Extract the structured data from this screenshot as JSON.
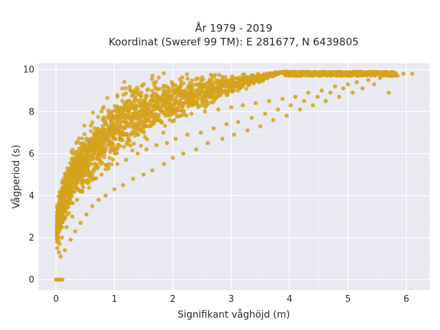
{
  "chart_data": {
    "type": "scatter",
    "title_line1": "År 1979 - 2019",
    "title_line2": "Koordinat (Sweref 99 TM): E 281677, N 6439805",
    "xlabel": "Signifikant våghöjd (m)",
    "ylabel": "Vågperiod (s)",
    "xlim": [
      -0.3,
      6.4
    ],
    "ylim": [
      -0.5,
      10.3
    ],
    "x_ticks": [
      0,
      1,
      2,
      3,
      4,
      5,
      6
    ],
    "y_ticks": [
      0,
      2,
      4,
      6,
      8,
      10
    ],
    "x_tick_labels": [
      "0",
      "1",
      "2",
      "3",
      "4",
      "5",
      "6"
    ],
    "y_tick_labels": [
      "0",
      "2",
      "4",
      "6",
      "8",
      "10"
    ],
    "grid": true,
    "background_color": "#e9e9f2",
    "marker_color": "#d4a21c",
    "points": [
      [
        0.0,
        0.0
      ],
      [
        0.03,
        0.0
      ],
      [
        0.06,
        0.0
      ],
      [
        0.09,
        0.0
      ],
      [
        0.11,
        0.0
      ],
      [
        0.02,
        1.5
      ],
      [
        0.03,
        2.2
      ],
      [
        0.05,
        1.3
      ],
      [
        0.06,
        1.7
      ],
      [
        0.08,
        1.1
      ],
      [
        0.1,
        2.0
      ],
      [
        0.12,
        2.8
      ],
      [
        0.14,
        3.3
      ],
      [
        0.15,
        1.4
      ],
      [
        0.18,
        2.5
      ],
      [
        0.2,
        3.6
      ],
      [
        0.22,
        4.1
      ],
      [
        0.25,
        1.9
      ],
      [
        0.28,
        3.0
      ],
      [
        0.3,
        4.5
      ],
      [
        0.33,
        2.3
      ],
      [
        0.36,
        3.8
      ],
      [
        0.4,
        4.9
      ],
      [
        0.42,
        2.7
      ],
      [
        0.45,
        4.2
      ],
      [
        0.5,
        5.2
      ],
      [
        0.52,
        3.1
      ],
      [
        0.55,
        4.6
      ],
      [
        0.6,
        5.5
      ],
      [
        0.62,
        3.5
      ],
      [
        0.66,
        4.8
      ],
      [
        0.7,
        5.8
      ],
      [
        0.73,
        3.8
      ],
      [
        0.78,
        5.0
      ],
      [
        0.82,
        6.1
      ],
      [
        0.85,
        4.0
      ],
      [
        0.9,
        5.3
      ],
      [
        0.95,
        6.4
      ],
      [
        1.0,
        4.3
      ],
      [
        1.05,
        5.5
      ],
      [
        1.1,
        6.7
      ],
      [
        1.15,
        4.5
      ],
      [
        1.2,
        5.7
      ],
      [
        1.28,
        6.9
      ],
      [
        1.32,
        4.8
      ],
      [
        1.4,
        6.0
      ],
      [
        1.45,
        7.1
      ],
      [
        1.5,
        5.0
      ],
      [
        1.55,
        6.2
      ],
      [
        1.6,
        7.3
      ],
      [
        1.65,
        5.2
      ],
      [
        1.72,
        6.4
      ],
      [
        1.8,
        7.5
      ],
      [
        1.85,
        5.5
      ],
      [
        1.9,
        6.5
      ],
      [
        1.95,
        7.6
      ],
      [
        2.0,
        5.8
      ],
      [
        2.05,
        6.7
      ],
      [
        2.12,
        7.8
      ],
      [
        2.18,
        6.0
      ],
      [
        2.25,
        6.9
      ],
      [
        2.32,
        7.9
      ],
      [
        2.4,
        6.2
      ],
      [
        2.48,
        7.0
      ],
      [
        2.55,
        8.0
      ],
      [
        2.6,
        6.5
      ],
      [
        2.7,
        7.2
      ],
      [
        2.78,
        8.1
      ],
      [
        2.85,
        6.7
      ],
      [
        2.92,
        7.4
      ],
      [
        3.0,
        8.2
      ],
      [
        3.05,
        6.9
      ],
      [
        3.12,
        7.5
      ],
      [
        3.2,
        8.3
      ],
      [
        3.28,
        7.1
      ],
      [
        3.35,
        7.7
      ],
      [
        3.42,
        8.4
      ],
      [
        3.5,
        7.3
      ],
      [
        3.58,
        7.9
      ],
      [
        3.65,
        8.5
      ],
      [
        3.72,
        7.6
      ],
      [
        3.8,
        8.1
      ],
      [
        3.88,
        8.6
      ],
      [
        3.95,
        7.8
      ],
      [
        4.02,
        8.3
      ],
      [
        4.1,
        8.7
      ],
      [
        4.18,
        8.1
      ],
      [
        4.25,
        8.5
      ],
      [
        4.32,
        8.9
      ],
      [
        4.4,
        8.3
      ],
      [
        4.48,
        8.7
      ],
      [
        4.55,
        9.0
      ],
      [
        4.62,
        8.5
      ],
      [
        4.7,
        8.9
      ],
      [
        4.78,
        9.2
      ],
      [
        4.85,
        8.7
      ],
      [
        4.92,
        9.1
      ],
      [
        5.0,
        9.3
      ],
      [
        5.08,
        8.9
      ],
      [
        5.15,
        9.4
      ],
      [
        5.25,
        9.1
      ],
      [
        5.35,
        9.5
      ],
      [
        5.45,
        9.3
      ],
      [
        5.55,
        9.6
      ],
      [
        5.7,
        8.9
      ],
      [
        5.75,
        9.8
      ],
      [
        5.85,
        9.7
      ],
      [
        5.95,
        9.8
      ],
      [
        6.1,
        9.8
      ]
    ]
  }
}
